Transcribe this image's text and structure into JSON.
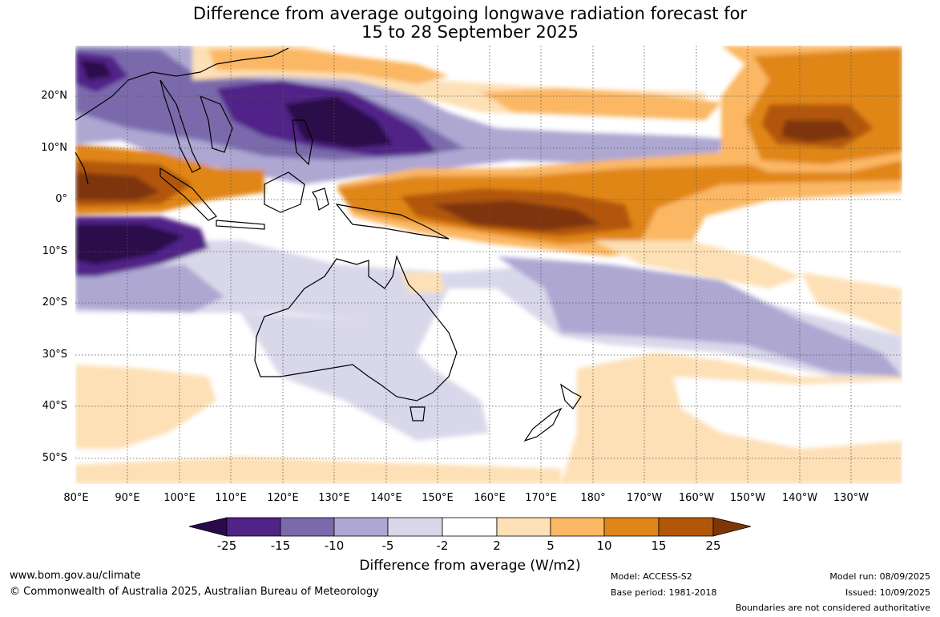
{
  "title_line1": "Difference from average outgoing longwave radiation forecast for",
  "title_line2": "15 to 28 September 2025",
  "latitudes": [
    "20°N",
    "10°N",
    "0°",
    "10°S",
    "20°S",
    "30°S",
    "40°S",
    "50°S"
  ],
  "longitudes": [
    "80°E",
    "90°E",
    "100°E",
    "110°E",
    "120°E",
    "130°E",
    "140°E",
    "150°E",
    "160°E",
    "170°E",
    "180°",
    "170°W",
    "160°W",
    "150°W",
    "140°W",
    "130°W"
  ],
  "colorbar": {
    "labels": [
      "-25",
      "-15",
      "-10",
      "-5",
      "-2",
      "2",
      "5",
      "10",
      "15",
      "25"
    ],
    "colors": [
      "#2a0a4a",
      "#512288",
      "#7a6aac",
      "#ada7d2",
      "#d9d8ea",
      "#ffffff",
      "#fde0b5",
      "#fbb764",
      "#e08618",
      "#b25709",
      "#7e3607"
    ],
    "title": "Difference from average (W/m2)"
  },
  "footer": {
    "website": "www.bom.gov.au/climate",
    "copyright": "© Commonwealth of Australia 2025, Australian Bureau of Meteorology",
    "model": "Model: ACCESS-S2",
    "base_period": "Base period: 1981-2018",
    "model_run": "Model run: 08/09/2025",
    "issued": "Issued: 10/09/2025",
    "disclaimer": "Boundaries are not considered authoritative"
  }
}
